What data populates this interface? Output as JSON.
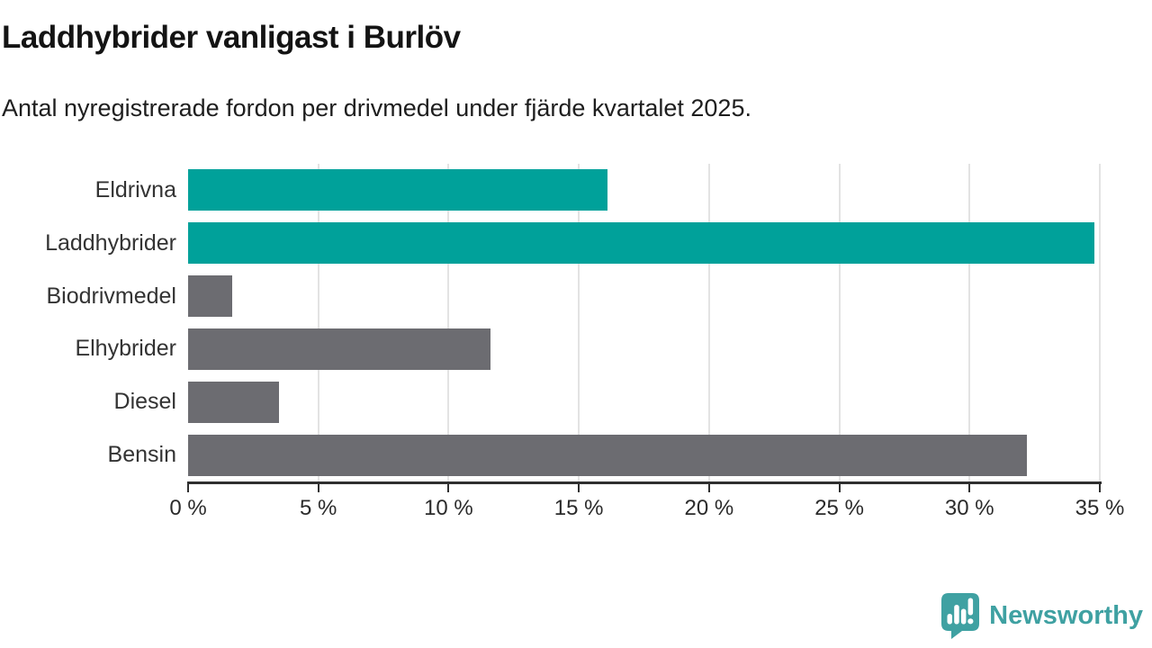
{
  "header": {
    "title": "Laddhybrider vanligast i Burlöv",
    "subtitle": "Antal nyregistrerade fordon per drivmedel under fjärde kvartalet 2025."
  },
  "chart_data": {
    "type": "bar",
    "orientation": "horizontal",
    "title": "Laddhybrider vanligast i Burlöv",
    "subtitle": "Antal nyregistrerade fordon per drivmedel under fjärde kvartalet 2025.",
    "categories": [
      "Eldrivna",
      "Laddhybrider",
      "Biodrivmedel",
      "Elhybrider",
      "Diesel",
      "Bensin"
    ],
    "values": [
      16.1,
      34.8,
      1.7,
      11.6,
      3.5,
      32.2
    ],
    "unit": "%",
    "xlim": [
      0,
      35
    ],
    "x_ticks": [
      0,
      5,
      10,
      15,
      20,
      25,
      30,
      35
    ],
    "x_tick_labels": [
      "0 %",
      "5 %",
      "10 %",
      "15 %",
      "20 %",
      "25 %",
      "30 %",
      "35 %"
    ],
    "bar_colors": [
      "#00a19a",
      "#00a19a",
      "#6c6c71",
      "#6c6c71",
      "#6c6c71",
      "#6c6c71"
    ],
    "highlight_color": "#00a19a",
    "default_color": "#6c6c71",
    "grid": true,
    "gridline_color": "#e3e3e3",
    "axis_color": "#2f2f2f",
    "legend": "none",
    "ylabel": "",
    "xlabel": ""
  },
  "branding": {
    "logo_text": "Newsworthy",
    "logo_color": "#3fa1a2",
    "logo_icon": "speech-bubble-bar-chart-icon"
  }
}
